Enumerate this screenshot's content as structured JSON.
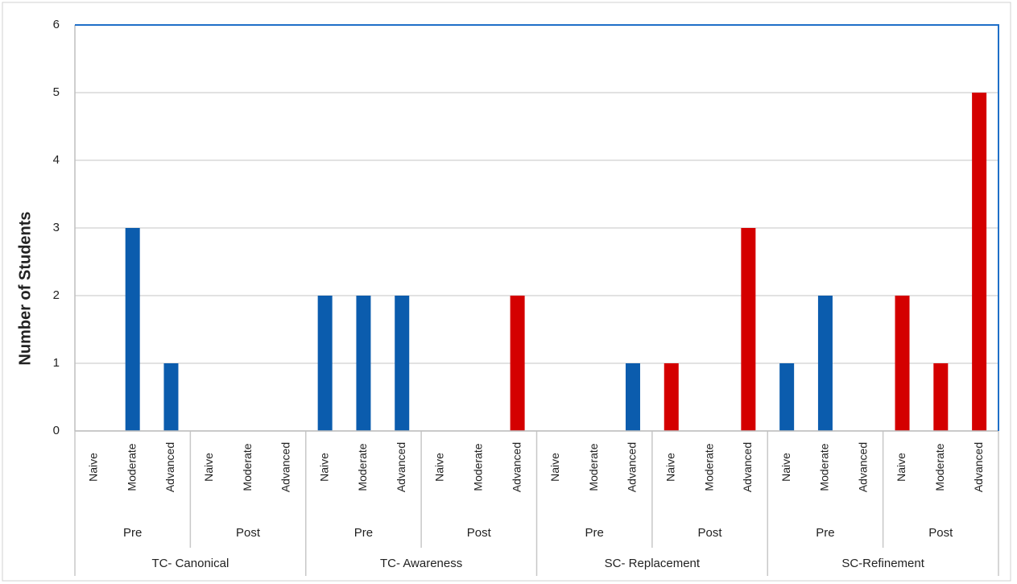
{
  "chart_data": {
    "type": "bar",
    "y_label": "Number of Students",
    "ylim": [
      0,
      6
    ],
    "yticks": [
      0,
      1,
      2,
      3,
      4,
      5,
      6
    ],
    "grid": true,
    "groups": [
      {
        "name": "TC- Canonical",
        "phases": [
          {
            "name": "Pre",
            "color": "#0b5cad",
            "categories": [
              "Naive",
              "Moderate",
              "Advanced"
            ],
            "values": [
              0,
              3,
              1
            ]
          },
          {
            "name": "Post",
            "color": "#d40000",
            "categories": [
              "Naive",
              "Moderate",
              "Advanced"
            ],
            "values": [
              0,
              0,
              0
            ]
          }
        ]
      },
      {
        "name": "TC- Awareness",
        "phases": [
          {
            "name": "Pre",
            "color": "#0b5cad",
            "categories": [
              "Naive",
              "Moderate",
              "Advanced"
            ],
            "values": [
              2,
              2,
              2
            ]
          },
          {
            "name": "Post",
            "color": "#d40000",
            "categories": [
              "Naive",
              "Moderate",
              "Advanced"
            ],
            "values": [
              0,
              0,
              2
            ]
          }
        ]
      },
      {
        "name": "SC- Replacement",
        "phases": [
          {
            "name": "Pre",
            "color": "#0b5cad",
            "categories": [
              "Naive",
              "Moderate",
              "Advanced"
            ],
            "values": [
              0,
              0,
              1
            ]
          },
          {
            "name": "Post",
            "color": "#d40000",
            "categories": [
              "Naive",
              "Moderate",
              "Advanced"
            ],
            "values": [
              1,
              0,
              3
            ]
          }
        ]
      },
      {
        "name": "SC-Refinement",
        "phases": [
          {
            "name": "Pre",
            "color": "#0b5cad",
            "categories": [
              "Naive",
              "Moderate",
              "Advanced"
            ],
            "values": [
              1,
              2,
              0
            ]
          },
          {
            "name": "Post",
            "color": "#d40000",
            "categories": [
              "Naive",
              "Moderate",
              "Advanced"
            ],
            "values": [
              2,
              1,
              5
            ]
          }
        ]
      }
    ]
  }
}
